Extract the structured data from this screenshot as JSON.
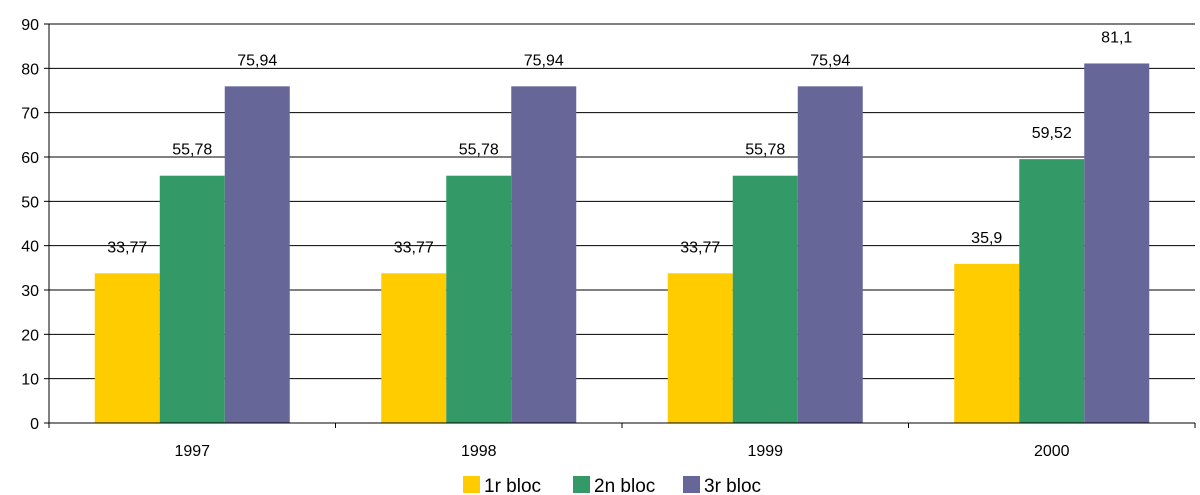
{
  "chart_data": {
    "type": "bar",
    "categories": [
      "1997",
      "1998",
      "1999",
      "2000"
    ],
    "series": [
      {
        "name": "1r bloc",
        "color": "#FFCC00",
        "values": [
          33.77,
          33.77,
          33.77,
          35.9
        ],
        "labels": [
          "33,77",
          "33,77",
          "33,77",
          "35,9"
        ]
      },
      {
        "name": "2n bloc",
        "color": "#339966",
        "values": [
          55.78,
          55.78,
          55.78,
          59.52
        ],
        "labels": [
          "55,78",
          "55,78",
          "55,78",
          "59,52"
        ]
      },
      {
        "name": "3r bloc",
        "color": "#666699",
        "values": [
          75.94,
          75.94,
          75.94,
          81.1
        ],
        "labels": [
          "75,94",
          "75,94",
          "75,94",
          "81,1"
        ]
      }
    ],
    "ylim": [
      0,
      90
    ],
    "yticks": [
      0,
      10,
      20,
      30,
      40,
      50,
      60,
      70,
      80,
      90
    ],
    "grid": true,
    "legend": "bottom-center"
  }
}
